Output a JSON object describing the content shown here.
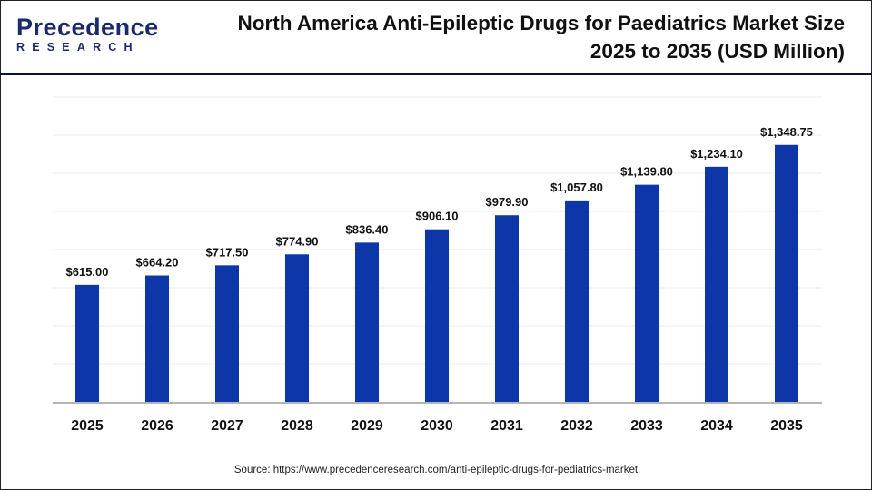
{
  "logo": {
    "line1": "Precedence",
    "line2": "RESEARCH"
  },
  "title_line1": "North America Anti-Epileptic Drugs for Paediatrics Market Size",
  "title_line2": "2025 to 2035 (USD Million)",
  "source": "Source: https://www.precedenceresearch.com/anti-epileptic-drugs-for-pediatrics-market",
  "chart_data": {
    "type": "bar",
    "title": "North America Anti-Epileptic Drugs for Paediatrics Market Size 2025 to 2035 (USD Million)",
    "categories": [
      "2025",
      "2026",
      "2027",
      "2028",
      "2029",
      "2030",
      "2031",
      "2032",
      "2033",
      "2034",
      "2035"
    ],
    "values": [
      615.0,
      664.2,
      717.5,
      774.9,
      836.4,
      906.1,
      979.9,
      1057.8,
      1139.8,
      1234.1,
      1348.75
    ],
    "labels": [
      "$615.00",
      "$664.20",
      "$717.50",
      "$774.90",
      "$836.40",
      "$906.10",
      "$979.90",
      "$1,057.80",
      "$1,139.80",
      "$1,234.10",
      "$1,348.75"
    ],
    "ylim": [
      0,
      1600
    ],
    "grid": true,
    "bar_color": "#0d37a8",
    "xlabel": "",
    "ylabel": ""
  }
}
